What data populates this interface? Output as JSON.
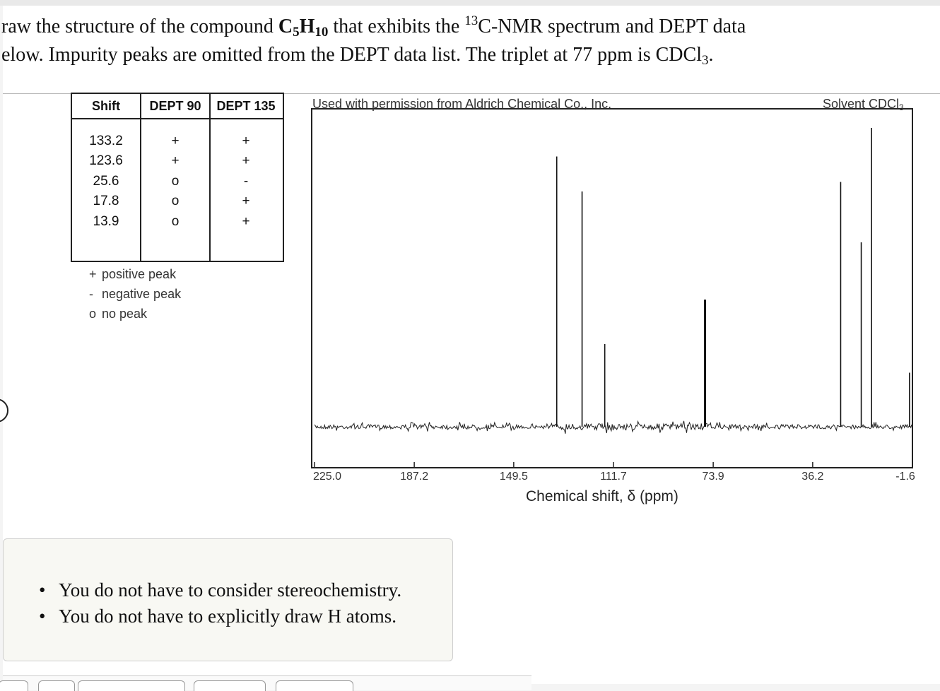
{
  "question": {
    "l1_pre": "raw the structure of the compound ",
    "l1_c": "C",
    "l1_c_sub": "5",
    "l1_h": "H",
    "l1_h_sub": "10",
    "l1_mid": " that exhibits the ",
    "l1_sup": "13",
    "l1_post": "C-NMR spectrum and DEPT data",
    "l2_pre": "elow. Impurity peaks are omitted from the DEPT data list. The triplet at 77 ppm is CDCl",
    "l2_sub": "3",
    "l2_post": "."
  },
  "dept_table": {
    "headers": [
      "Shift",
      "DEPT 90",
      "DEPT 135"
    ],
    "rows": [
      [
        "133.2",
        "+",
        "+"
      ],
      [
        "123.6",
        "+",
        "+"
      ],
      [
        "25.6",
        "o",
        "-"
      ],
      [
        "17.8",
        "o",
        "+"
      ],
      [
        "13.9",
        "o",
        "+"
      ]
    ]
  },
  "legend": [
    {
      "symbol": "+",
      "text": "positive peak"
    },
    {
      "symbol": "-",
      "text": "negative peak"
    },
    {
      "symbol": "o",
      "text": "no peak"
    }
  ],
  "spectrum": {
    "credit": "Used with permission from Aldrich Chemical Co., Inc.",
    "solvent_label": "Solvent CDCl",
    "solvent_sub": "3",
    "xlabel": "Chemical shift, δ (ppm)"
  },
  "chart_data": {
    "type": "line",
    "title": "",
    "xlabel": "Chemical shift, δ (ppm)",
    "ylabel": "",
    "xlim": [
      225.0,
      -1.6
    ],
    "x_reversed": true,
    "x_ticks": [
      "225.0",
      "187.2",
      "149.5",
      "111.7",
      "73.9",
      "36.2",
      "-1.6"
    ],
    "x_tick_values": [
      225.0,
      187.2,
      149.5,
      111.7,
      73.9,
      36.2,
      -1.6
    ],
    "peaks": [
      {
        "shift": 133.2,
        "height": 0.85
      },
      {
        "shift": 123.6,
        "height": 0.74
      },
      {
        "shift": 115.0,
        "height": 0.26
      },
      {
        "shift": 77.0,
        "height": 0.4
      },
      {
        "shift": 25.6,
        "height": 0.77
      },
      {
        "shift": 17.8,
        "height": 0.58
      },
      {
        "shift": 13.9,
        "height": 0.94
      },
      {
        "shift": -0.5,
        "height": 0.17
      }
    ]
  },
  "hints": [
    "You do not have to consider stereochemistry.",
    "You do not have to explicitly draw H atoms."
  ]
}
